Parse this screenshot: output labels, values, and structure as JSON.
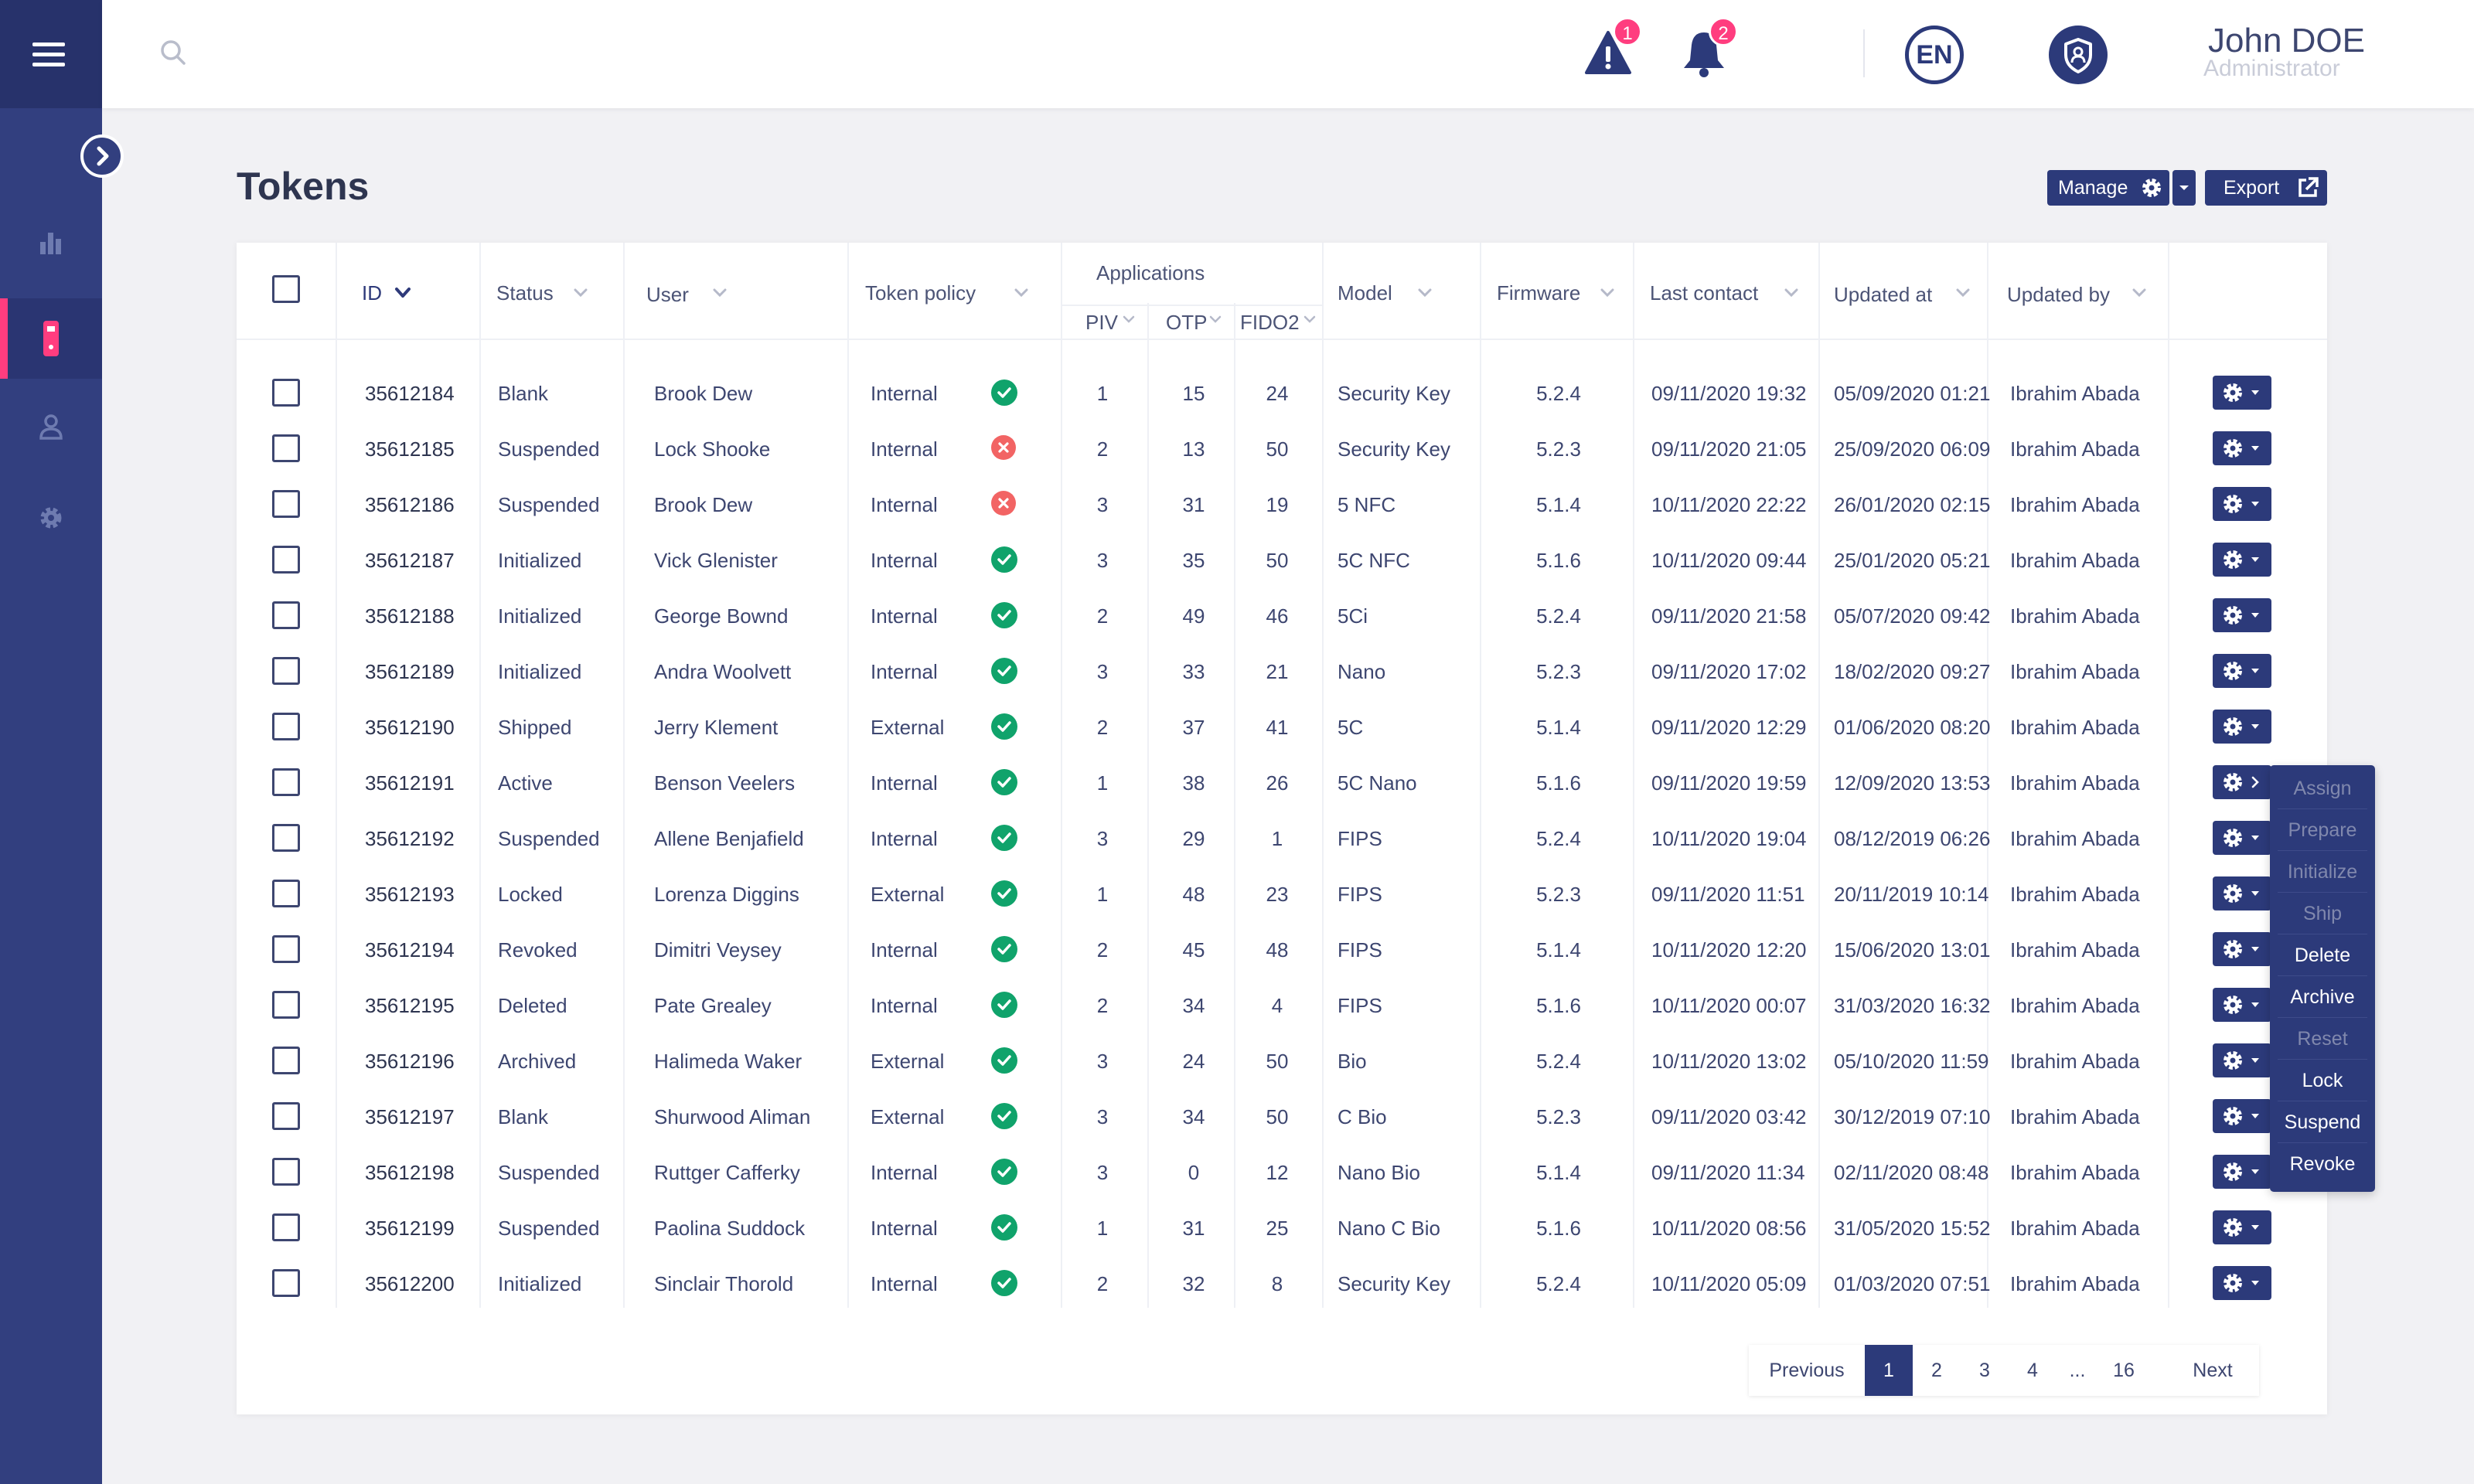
{
  "header": {
    "alerts_count": "1",
    "notifications_count": "2",
    "language": "EN",
    "user_name": "John DOE",
    "user_role": "Administrator"
  },
  "page": {
    "title": "Tokens",
    "manage_label": "Manage",
    "export_label": "Export"
  },
  "table": {
    "columns": {
      "id": "ID",
      "status": "Status",
      "user": "User",
      "policy": "Token policy",
      "applications": "Applications",
      "piv": "PIV",
      "otp": "OTP",
      "fido2": "FIDO2",
      "model": "Model",
      "firmware": "Firmware",
      "last_contact": "Last contact",
      "updated_at": "Updated at",
      "updated_by": "Updated by"
    },
    "rows": [
      {
        "id": "35612184",
        "status": "Blank",
        "user": "Brook Dew",
        "policy": "Internal",
        "ok": true,
        "piv": "1",
        "otp": "15",
        "fido2": "24",
        "model": "Security Key",
        "firmware": "5.2.4",
        "last_contact": "09/11/2020 19:32",
        "updated_at": "05/09/2020 01:21",
        "updated_by": "Ibrahim Abada"
      },
      {
        "id": "35612185",
        "status": "Suspended",
        "user": "Lock Shooke",
        "policy": "Internal",
        "ok": false,
        "piv": "2",
        "otp": "13",
        "fido2": "50",
        "model": "Security Key",
        "firmware": "5.2.3",
        "last_contact": "09/11/2020 21:05",
        "updated_at": "25/09/2020 06:09",
        "updated_by": "Ibrahim Abada"
      },
      {
        "id": "35612186",
        "status": "Suspended",
        "user": "Brook Dew",
        "policy": "Internal",
        "ok": false,
        "piv": "3",
        "otp": "31",
        "fido2": "19",
        "model": "5 NFC",
        "firmware": "5.1.4",
        "last_contact": "10/11/2020 22:22",
        "updated_at": "26/01/2020 02:15",
        "updated_by": "Ibrahim Abada"
      },
      {
        "id": "35612187",
        "status": "Initialized",
        "user": "Vick Glenister",
        "policy": "Internal",
        "ok": true,
        "piv": "3",
        "otp": "35",
        "fido2": "50",
        "model": "5C NFC",
        "firmware": "5.1.6",
        "last_contact": "10/11/2020 09:44",
        "updated_at": "25/01/2020 05:21",
        "updated_by": "Ibrahim Abada"
      },
      {
        "id": "35612188",
        "status": "Initialized",
        "user": "George Bownd",
        "policy": "Internal",
        "ok": true,
        "piv": "2",
        "otp": "49",
        "fido2": "46",
        "model": "5Ci",
        "firmware": "5.2.4",
        "last_contact": "09/11/2020 21:58",
        "updated_at": "05/07/2020 09:42",
        "updated_by": "Ibrahim Abada"
      },
      {
        "id": "35612189",
        "status": "Initialized",
        "user": "Andra Woolvett",
        "policy": "Internal",
        "ok": true,
        "piv": "3",
        "otp": "33",
        "fido2": "21",
        "model": "Nano",
        "firmware": "5.2.3",
        "last_contact": "09/11/2020 17:02",
        "updated_at": "18/02/2020 09:27",
        "updated_by": "Ibrahim Abada"
      },
      {
        "id": "35612190",
        "status": "Shipped",
        "user": "Jerry Klement",
        "policy": "External",
        "ok": true,
        "piv": "2",
        "otp": "37",
        "fido2": "41",
        "model": "5C",
        "firmware": "5.1.4",
        "last_contact": "09/11/2020 12:29",
        "updated_at": "01/06/2020 08:20",
        "updated_by": "Ibrahim Abada"
      },
      {
        "id": "35612191",
        "status": "Active",
        "user": "Benson Veelers",
        "policy": "Internal",
        "ok": true,
        "piv": "1",
        "otp": "38",
        "fido2": "26",
        "model": "5C Nano",
        "firmware": "5.1.6",
        "last_contact": "09/11/2020 19:59",
        "updated_at": "12/09/2020 13:53",
        "updated_by": "Ibrahim Abada"
      },
      {
        "id": "35612192",
        "status": "Suspended",
        "user": "Allene Benjafield",
        "policy": "Internal",
        "ok": true,
        "piv": "3",
        "otp": "29",
        "fido2": "1",
        "model": "FIPS",
        "firmware": "5.2.4",
        "last_contact": "10/11/2020 19:04",
        "updated_at": "08/12/2019 06:26",
        "updated_by": "Ibrahim Abada"
      },
      {
        "id": "35612193",
        "status": "Locked",
        "user": "Lorenza Diggins",
        "policy": "External",
        "ok": true,
        "piv": "1",
        "otp": "48",
        "fido2": "23",
        "model": "FIPS",
        "firmware": "5.2.3",
        "last_contact": "09/11/2020 11:51",
        "updated_at": "20/11/2019 10:14",
        "updated_by": "Ibrahim Abada"
      },
      {
        "id": "35612194",
        "status": "Revoked",
        "user": "Dimitri Veysey",
        "policy": "Internal",
        "ok": true,
        "piv": "2",
        "otp": "45",
        "fido2": "48",
        "model": "FIPS",
        "firmware": "5.1.4",
        "last_contact": "10/11/2020 12:20",
        "updated_at": "15/06/2020 13:01",
        "updated_by": "Ibrahim Abada"
      },
      {
        "id": "35612195",
        "status": "Deleted",
        "user": "Pate Grealey",
        "policy": "Internal",
        "ok": true,
        "piv": "2",
        "otp": "34",
        "fido2": "4",
        "model": "FIPS",
        "firmware": "5.1.6",
        "last_contact": "10/11/2020 00:07",
        "updated_at": "31/03/2020 16:32",
        "updated_by": "Ibrahim Abada"
      },
      {
        "id": "35612196",
        "status": "Archived",
        "user": "Halimeda Waker",
        "policy": "External",
        "ok": true,
        "piv": "3",
        "otp": "24",
        "fido2": "50",
        "model": "Bio",
        "firmware": "5.2.4",
        "last_contact": "10/11/2020 13:02",
        "updated_at": "05/10/2020 11:59",
        "updated_by": "Ibrahim Abada"
      },
      {
        "id": "35612197",
        "status": "Blank",
        "user": "Shurwood Aliman",
        "policy": "External",
        "ok": true,
        "piv": "3",
        "otp": "34",
        "fido2": "50",
        "model": "C Bio",
        "firmware": "5.2.3",
        "last_contact": "09/11/2020 03:42",
        "updated_at": "30/12/2019 07:10",
        "updated_by": "Ibrahim Abada"
      },
      {
        "id": "35612198",
        "status": "Suspended",
        "user": "Ruttger Cafferky",
        "policy": "Internal",
        "ok": true,
        "piv": "3",
        "otp": "0",
        "fido2": "12",
        "model": "Nano Bio",
        "firmware": "5.1.4",
        "last_contact": "09/11/2020 11:34",
        "updated_at": "02/11/2020 08:48",
        "updated_by": "Ibrahim Abada"
      },
      {
        "id": "35612199",
        "status": "Suspended",
        "user": "Paolina Suddock",
        "policy": "Internal",
        "ok": true,
        "piv": "1",
        "otp": "31",
        "fido2": "25",
        "model": "Nano C Bio",
        "firmware": "5.1.6",
        "last_contact": "10/11/2020 08:56",
        "updated_at": "31/05/2020 15:52",
        "updated_by": "Ibrahim Abada"
      },
      {
        "id": "35612200",
        "status": "Initialized",
        "user": "Sinclair Thorold",
        "policy": "Internal",
        "ok": true,
        "piv": "2",
        "otp": "32",
        "fido2": "8",
        "model": "Security Key",
        "firmware": "5.2.4",
        "last_contact": "10/11/2020 05:09",
        "updated_at": "01/03/2020 07:51",
        "updated_by": "Ibrahim Abada"
      }
    ]
  },
  "actions_menu": [
    {
      "label": "Assign",
      "enabled": false
    },
    {
      "label": "Prepare",
      "enabled": false
    },
    {
      "label": "Initialize",
      "enabled": false
    },
    {
      "label": "Ship",
      "enabled": false
    },
    {
      "label": "Delete",
      "enabled": true
    },
    {
      "label": "Archive",
      "enabled": true
    },
    {
      "label": "Reset",
      "enabled": false
    },
    {
      "label": "Lock",
      "enabled": true
    },
    {
      "label": "Suspend",
      "enabled": true
    },
    {
      "label": "Revoke",
      "enabled": true
    }
  ],
  "pagination": {
    "previous": "Previous",
    "pages": [
      "1",
      "2",
      "3",
      "4",
      "...",
      "16"
    ],
    "current": "1",
    "next": "Next"
  },
  "colors": {
    "sidebar": "#323f7f",
    "accent": "#ff3d7f",
    "primary": "#2c3a7a",
    "success": "#10a36b",
    "error": "#f26464"
  }
}
